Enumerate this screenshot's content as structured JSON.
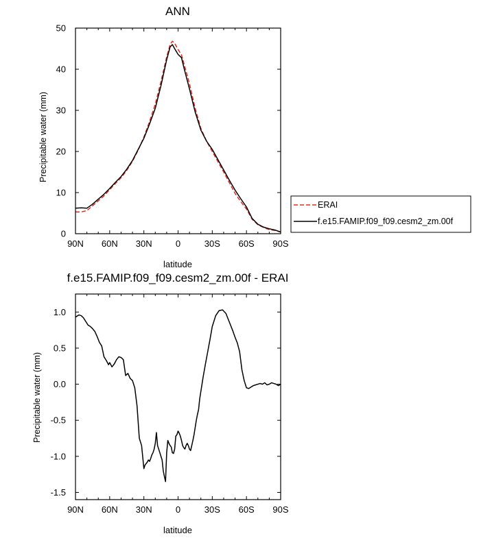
{
  "chart_data": [
    {
      "type": "line",
      "title": "ANN",
      "xlabel": "latitude",
      "ylabel": "Precipitable water (mm)",
      "xlim": [
        90,
        -90
      ],
      "ylim": [
        0,
        50
      ],
      "xticks": [
        90,
        60,
        30,
        0,
        -30,
        -60,
        -90
      ],
      "xtick_labels": [
        "90N",
        "60N",
        "30N",
        "0",
        "30S",
        "60S",
        "90S"
      ],
      "yticks": [
        0,
        10,
        20,
        30,
        40,
        50
      ],
      "ytick_labels": [
        "0",
        "10",
        "20",
        "30",
        "40",
        "50"
      ],
      "legend": "right",
      "series": [
        {
          "name": "ERAI",
          "color": "#e8281f",
          "dash": "dashed",
          "x": [
            90,
            85,
            80,
            75,
            70,
            65,
            60,
            55,
            50,
            45,
            40,
            35,
            30,
            25,
            20,
            15,
            10,
            7,
            5,
            3,
            0,
            -3,
            -5,
            -10,
            -15,
            -20,
            -25,
            -30,
            -35,
            -40,
            -45,
            -50,
            -55,
            -60,
            -65,
            -70,
            -75,
            -80,
            -85,
            -90
          ],
          "y": [
            5.3,
            5.3,
            5.6,
            6.8,
            8,
            9.2,
            10.7,
            12.2,
            13.6,
            15.4,
            17.6,
            20.3,
            23.5,
            27.3,
            31.5,
            37,
            43,
            46,
            46.8,
            46.3,
            44.8,
            43.5,
            41.5,
            36.5,
            30.5,
            25.6,
            22.5,
            20,
            17.5,
            15,
            12.4,
            9.8,
            7.8,
            6,
            3.5,
            2.2,
            1.5,
            1,
            0.8,
            0.4
          ]
        },
        {
          "name": "f.e15.FAMIP.f09_f09.cesm2_zm.00f",
          "color": "#000000",
          "dash": "solid",
          "x": [
            90,
            85,
            80,
            75,
            70,
            65,
            60,
            55,
            50,
            45,
            40,
            35,
            30,
            25,
            20,
            15,
            10,
            7,
            5,
            3,
            0,
            -3,
            -5,
            -10,
            -15,
            -20,
            -25,
            -30,
            -35,
            -40,
            -45,
            -50,
            -55,
            -60,
            -65,
            -70,
            -75,
            -80,
            -85,
            -90
          ],
          "y": [
            6.2,
            6.3,
            6.2,
            7.2,
            8.4,
            9.6,
            11,
            12.5,
            13.9,
            15.7,
            17.8,
            20.5,
            23.2,
            26.7,
            30.5,
            36,
            42.3,
            45.4,
            46,
            45,
            43.6,
            42.8,
            40.5,
            35.2,
            29.6,
            25.2,
            22.5,
            20.5,
            18,
            15.5,
            13,
            10.6,
            8.5,
            6.5,
            3.7,
            2.3,
            1.6,
            1.2,
            0.9,
            0.4
          ]
        }
      ]
    },
    {
      "type": "line",
      "title": "f.e15.FAMIP.f09_f09.cesm2_zm.00f - ERAI",
      "xlabel": "latitude",
      "ylabel": "Precipitable water (mm)",
      "xlim": [
        90,
        -90
      ],
      "ylim": [
        -1.6,
        1.25
      ],
      "xticks": [
        90,
        60,
        30,
        0,
        -30,
        -60,
        -90
      ],
      "xtick_labels": [
        "90N",
        "60N",
        "30N",
        "0",
        "30S",
        "60S",
        "90S"
      ],
      "yticks": [
        1.0,
        0.5,
        0.0,
        -0.5,
        -1.0,
        -1.5
      ],
      "ytick_labels": [
        "1.0",
        "0.5",
        "0.0",
        "-0.5",
        "-1.0",
        "-1.5"
      ],
      "series": [
        {
          "color": "#000000",
          "dash": "solid",
          "x": [
            90,
            87,
            85,
            83,
            81,
            79,
            77,
            75,
            73,
            71,
            69,
            67,
            65,
            63,
            61,
            60,
            58,
            56,
            54,
            52,
            50,
            48,
            46,
            44,
            42,
            40,
            38,
            36,
            34,
            32,
            30,
            29,
            28,
            27,
            26,
            25,
            24,
            23,
            22,
            21,
            20,
            19,
            18,
            17,
            16,
            15,
            14,
            13,
            12,
            11,
            10,
            9,
            8,
            7,
            6,
            5,
            4,
            3,
            2,
            1,
            0,
            -1,
            -2,
            -3,
            -4,
            -5,
            -6,
            -7,
            -8,
            -9,
            -10,
            -11,
            -12,
            -13,
            -14,
            -15,
            -16,
            -17,
            -18,
            -19,
            -20,
            -22,
            -24,
            -26,
            -28,
            -30,
            -33,
            -36,
            -39,
            -42,
            -44,
            -46,
            -48,
            -50,
            -52,
            -54,
            -56,
            -58,
            -60,
            -62,
            -64,
            -66,
            -68,
            -70,
            -72,
            -74,
            -76,
            -78,
            -80,
            -82,
            -84,
            -86,
            -88,
            -90
          ],
          "y": [
            0.93,
            0.96,
            0.95,
            0.92,
            0.87,
            0.82,
            0.8,
            0.77,
            0.73,
            0.66,
            0.58,
            0.53,
            0.38,
            0.33,
            0.27,
            0.3,
            0.24,
            0.28,
            0.34,
            0.38,
            0.37,
            0.34,
            0.12,
            0.15,
            0.08,
            0.05,
            -0.05,
            -0.3,
            -0.75,
            -0.85,
            -1.17,
            -1.12,
            -1.1,
            -1.08,
            -1.05,
            -1.07,
            -1.03,
            -0.98,
            -0.95,
            -0.9,
            -0.82,
            -0.67,
            -0.85,
            -0.9,
            -0.95,
            -1.0,
            -1.05,
            -1.2,
            -1.28,
            -1.35,
            -0.95,
            -0.78,
            -0.82,
            -0.85,
            -0.87,
            -0.95,
            -0.96,
            -0.9,
            -0.72,
            -0.7,
            -0.65,
            -0.68,
            -0.72,
            -0.78,
            -0.85,
            -0.88,
            -0.9,
            -0.85,
            -0.82,
            -0.85,
            -0.9,
            -0.92,
            -0.85,
            -0.78,
            -0.7,
            -0.6,
            -0.5,
            -0.42,
            -0.35,
            -0.2,
            -0.1,
            0.1,
            0.28,
            0.45,
            0.62,
            0.8,
            0.95,
            1.02,
            1.03,
            0.98,
            0.9,
            0.82,
            0.74,
            0.65,
            0.57,
            0.45,
            0.2,
            0.05,
            -0.05,
            -0.06,
            -0.04,
            -0.02,
            -0.01,
            0.0,
            0.01,
            0.0,
            0.02,
            -0.01,
            0.0,
            0.02,
            0.01,
            0.0,
            -0.02,
            0.0
          ]
        }
      ]
    }
  ]
}
